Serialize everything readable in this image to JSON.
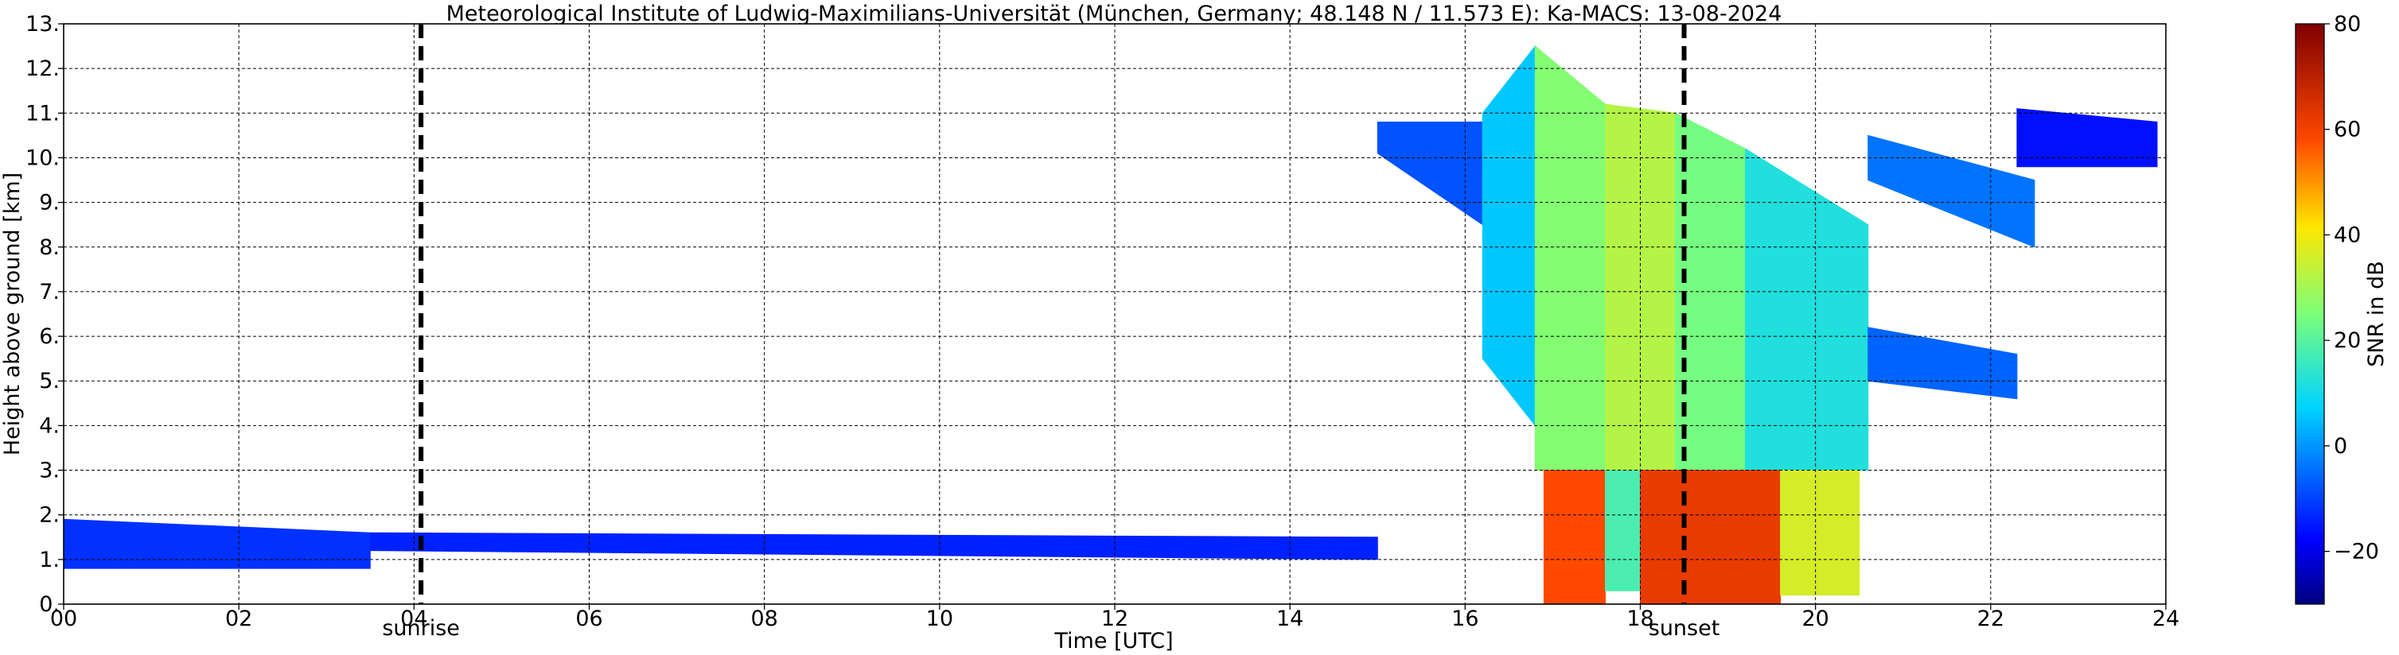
{
  "chart_data": {
    "type": "heatmap",
    "title": "Meteorological Institute of Ludwig-Maximilians-Universität (München, Germany; 48.148 N / 11.573 E):    Ka-MACS: 13-08-2024",
    "xlabel": "Time [UTC]",
    "ylabel": "Height above ground [km]",
    "xlim": [
      0,
      24
    ],
    "ylim": [
      0,
      13
    ],
    "x_ticks": [
      0,
      2,
      4,
      6,
      8,
      10,
      12,
      14,
      16,
      18,
      20,
      22,
      24
    ],
    "x_tick_labels": [
      "00",
      "02",
      "04",
      "06",
      "08",
      "10",
      "12",
      "14",
      "16",
      "18",
      "20",
      "22",
      "24"
    ],
    "y_ticks": [
      0,
      1,
      2,
      3,
      4,
      5,
      6,
      7,
      8,
      9,
      10,
      11,
      12,
      13
    ],
    "y_tick_labels": [
      "0.",
      "1.",
      "2.",
      "3.",
      "4.",
      "5.",
      "6.",
      "7.",
      "8.",
      "9.",
      "10.",
      "11.",
      "12.",
      "13."
    ],
    "grid": true,
    "colorbar": {
      "label": "SNR in dB",
      "range": [
        -30,
        80
      ],
      "ticks": [
        -20,
        0,
        20,
        40,
        60,
        80
      ],
      "tick_labels": [
        "−20",
        "0",
        "20",
        "40",
        "60",
        "80"
      ],
      "colormap": "jet"
    },
    "markers": [
      {
        "label": "sunrise",
        "time": 4.08
      },
      {
        "label": "sunset",
        "time": 18.5
      }
    ],
    "sectors": [
      {
        "name": "early_low",
        "value": -12,
        "x0": 0,
        "x1": 3.5,
        "ybot": [
          0.8,
          0.8
        ],
        "ytop": [
          1.9,
          1.6
        ]
      },
      {
        "name": "scatter_low",
        "value": -14,
        "x0": 3.5,
        "x1": 15.0,
        "ybot": [
          1.2,
          1.0
        ],
        "ytop": [
          1.6,
          1.5
        ]
      },
      {
        "name": "anvil_blue",
        "value": -8,
        "x0": 15.0,
        "x1": 16.2,
        "ybot": [
          10.1,
          8.5
        ],
        "ytop": [
          10.8,
          10.8
        ]
      },
      {
        "name": "anvil_sky",
        "value": 6,
        "x0": 16.2,
        "x1": 16.8,
        "ybot": [
          5.5,
          4.0
        ],
        "ytop": [
          11.0,
          12.5
        ]
      },
      {
        "name": "core_upper_a",
        "value": 26,
        "x0": 16.8,
        "x1": 17.6,
        "ybot": [
          3.0,
          3.0
        ],
        "ytop": [
          12.5,
          11.2
        ]
      },
      {
        "name": "core_upper_b",
        "value": 32,
        "x0": 17.6,
        "x1": 18.4,
        "ybot": [
          3.0,
          3.0
        ],
        "ytop": [
          11.2,
          11.0
        ]
      },
      {
        "name": "core_upper_c",
        "value": 24,
        "x0": 18.4,
        "x1": 19.2,
        "ybot": [
          3.0,
          3.0
        ],
        "ytop": [
          11.0,
          10.2
        ]
      },
      {
        "name": "core_upper_d",
        "value": 12,
        "x0": 19.2,
        "x1": 20.6,
        "ybot": [
          3.0,
          3.0
        ],
        "ytop": [
          10.2,
          8.5
        ]
      },
      {
        "name": "rain_a",
        "value": 58,
        "x0": 16.9,
        "x1": 17.6,
        "ybot": [
          0,
          0
        ],
        "ytop": [
          3.0,
          3.0
        ]
      },
      {
        "name": "notch",
        "value": 18,
        "x0": 17.6,
        "x1": 18.0,
        "ybot": [
          0.3,
          0.3
        ],
        "ytop": [
          3.0,
          3.0
        ]
      },
      {
        "name": "rain_b",
        "value": 62,
        "x0": 18.0,
        "x1": 19.6,
        "ybot": [
          0,
          0
        ],
        "ytop": [
          3.0,
          3.0
        ]
      },
      {
        "name": "rain_c",
        "value": 36,
        "x0": 19.6,
        "x1": 20.5,
        "ybot": [
          0.2,
          0.2
        ],
        "ytop": [
          3.0,
          3.0
        ]
      },
      {
        "name": "trailing_anvil",
        "value": -4,
        "x0": 20.6,
        "x1": 22.5,
        "ybot": [
          9.5,
          8.0
        ],
        "ytop": [
          10.5,
          9.5
        ]
      },
      {
        "name": "trailing_mid",
        "value": -6,
        "x0": 20.6,
        "x1": 22.3,
        "ybot": [
          5.0,
          4.6
        ],
        "ytop": [
          6.2,
          5.6
        ]
      },
      {
        "name": "late_patch",
        "value": -16,
        "x0": 22.3,
        "x1": 23.9,
        "ybot": [
          9.8,
          9.8
        ],
        "ytop": [
          11.1,
          10.8
        ]
      }
    ]
  }
}
